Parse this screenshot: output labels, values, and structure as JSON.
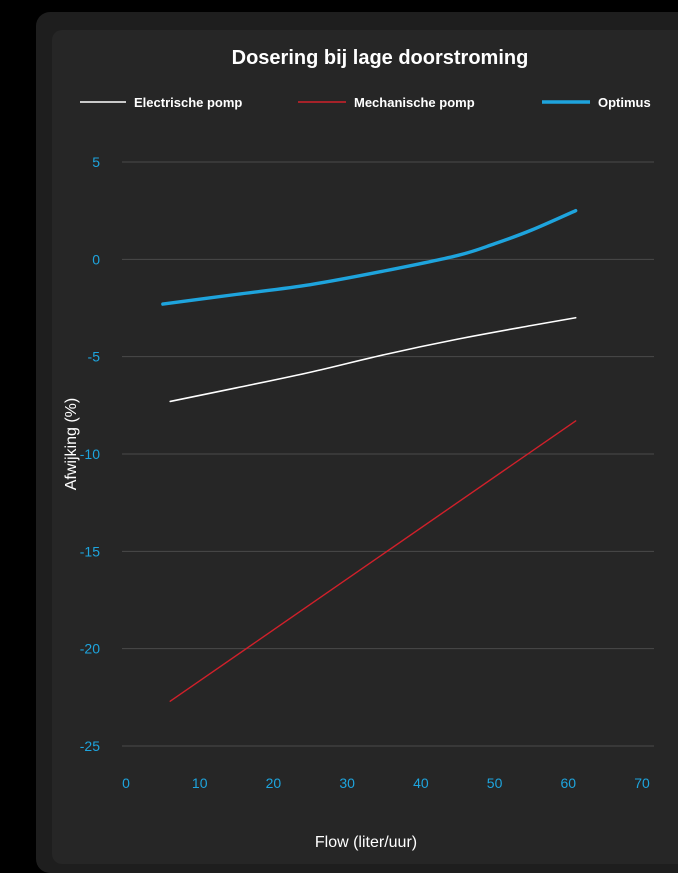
{
  "chart_data": {
    "type": "line",
    "title": "Dosering bij lage doorstroming",
    "xlabel": "Flow (liter/uur)",
    "ylabel": "Afwijking (%)",
    "xlim": [
      0,
      70
    ],
    "ylim": [
      -25,
      5
    ],
    "x_ticks": [
      "0",
      "10",
      "20",
      "30",
      "40",
      "50",
      "60",
      "70"
    ],
    "y_ticks": [
      "5",
      "0",
      "-5",
      "-10",
      "-15",
      "-20",
      "-25"
    ],
    "grid": "horizontal",
    "legend_position": "top",
    "series": [
      {
        "name": "Electrische pomp",
        "color": "#ffffff",
        "x": [
          6,
          15,
          25,
          35,
          45,
          55,
          61
        ],
        "y": [
          -7.3,
          -6.6,
          -5.8,
          -4.9,
          -4.1,
          -3.4,
          -3.0
        ]
      },
      {
        "name": "Mechanische pomp",
        "color": "#d0202a",
        "x": [
          6,
          61
        ],
        "y": [
          -22.7,
          -8.3
        ]
      },
      {
        "name": "Optimus",
        "color": "#1ea4dd",
        "x": [
          5,
          15,
          25,
          35,
          45,
          50,
          55,
          61
        ],
        "y": [
          -2.3,
          -1.8,
          -1.3,
          -0.6,
          0.2,
          0.8,
          1.5,
          2.5
        ]
      }
    ]
  }
}
